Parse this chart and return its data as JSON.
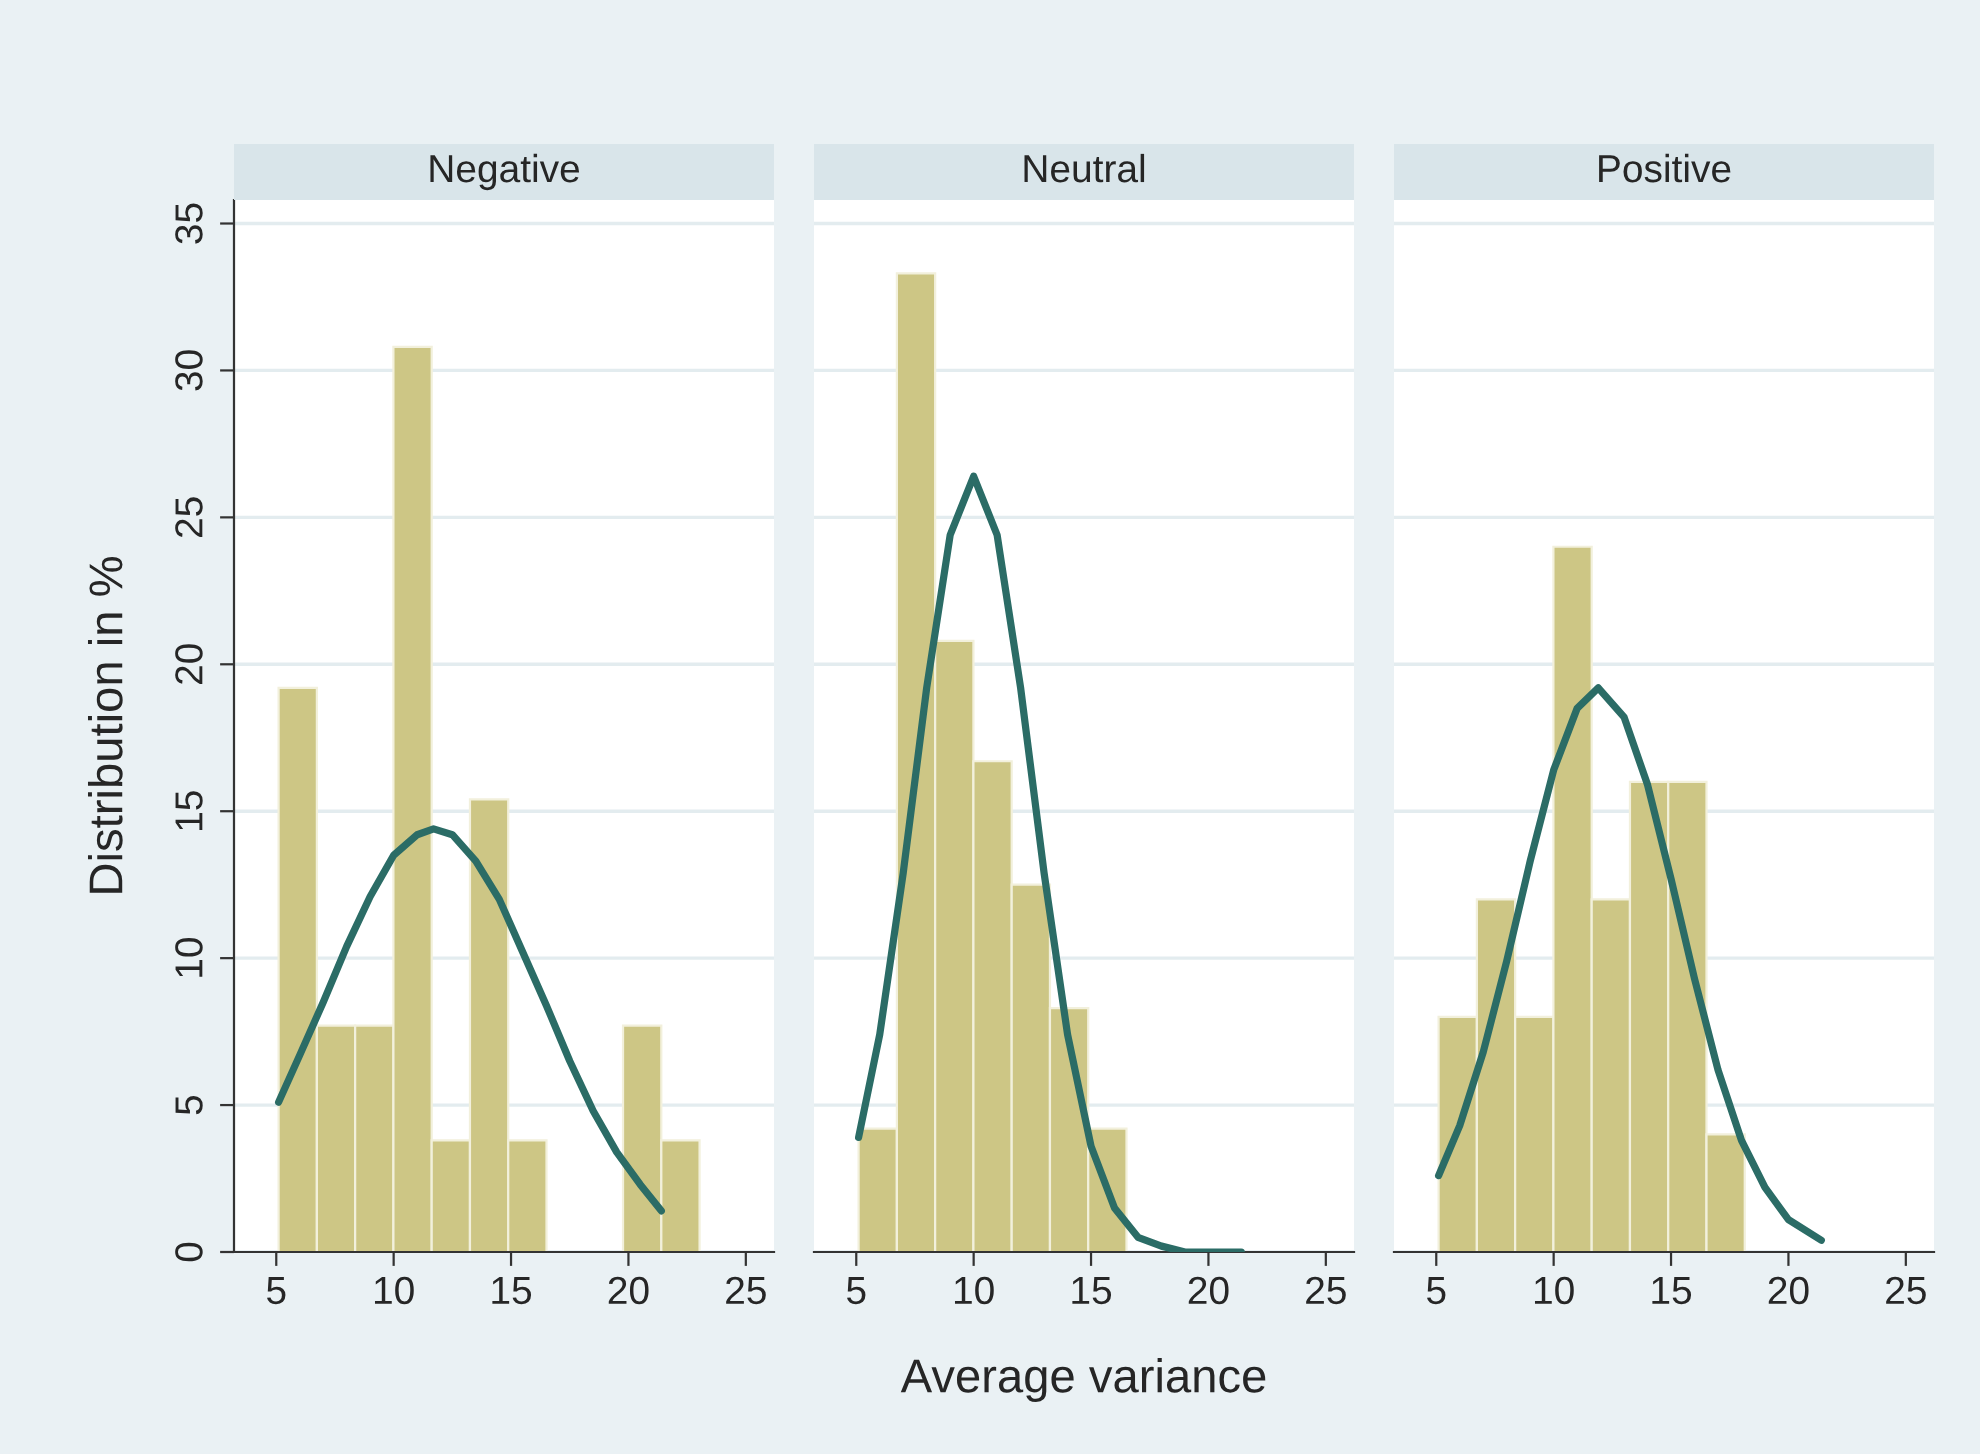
{
  "chart_data": [
    {
      "type": "histogram",
      "title": "Negative",
      "ylabel": "Distribution in %",
      "bins": [
        5.1,
        6.73,
        8.36,
        9.99,
        11.62,
        13.25,
        14.88,
        16.51,
        18.14,
        19.77,
        21.4,
        23.03
      ],
      "series": [
        {
          "color": "#cdc685",
          "values": [
            19.2,
            7.7,
            7.7,
            30.8,
            3.8,
            15.4,
            3.8,
            0,
            0,
            7.7,
            3.8
          ]
        },
        {
          "type": "line",
          "color": "#2b6c66",
          "x": [
            5.1,
            6,
            7,
            8,
            9,
            10,
            11,
            11.7,
            12.5,
            13.5,
            14.5,
            15.5,
            16.5,
            17.5,
            18.5,
            19.5,
            20.5,
            21.4
          ],
          "values": [
            5.1,
            6.7,
            8.5,
            10.4,
            12.1,
            13.5,
            14.2,
            14.4,
            14.2,
            13.3,
            12.0,
            10.2,
            8.4,
            6.5,
            4.8,
            3.4,
            2.3,
            1.4
          ]
        }
      ],
      "xlim": [
        3.2,
        26.2
      ],
      "xticks": [
        5,
        10,
        15,
        20,
        25
      ],
      "ylim": [
        0,
        35.8
      ],
      "yticks": [
        0,
        5,
        10,
        15,
        20,
        25,
        30,
        35
      ],
      "grid": "y"
    },
    {
      "type": "histogram",
      "title": "Neutral",
      "xlabel": "Average variance",
      "bins": [
        5.1,
        6.73,
        8.36,
        9.99,
        11.62,
        13.25,
        14.88,
        16.51
      ],
      "series": [
        {
          "color": "#cdc685",
          "values": [
            4.2,
            33.3,
            20.8,
            16.7,
            12.5,
            8.3,
            4.2
          ]
        },
        {
          "type": "line",
          "color": "#2b6c66",
          "x": [
            5.1,
            6,
            7,
            8,
            9,
            10,
            11,
            12,
            13,
            14,
            15,
            16,
            17,
            18,
            19,
            20,
            21.4
          ],
          "values": [
            3.9,
            7.4,
            12.9,
            19.2,
            24.4,
            26.4,
            24.4,
            19.2,
            12.9,
            7.4,
            3.6,
            1.5,
            0.5,
            0.2,
            0.0,
            0.0,
            0.0
          ]
        }
      ],
      "xlim": [
        3.2,
        26.2
      ],
      "xticks": [
        5,
        10,
        15,
        20,
        25
      ],
      "ylim": [
        0,
        35.8
      ],
      "yticks": [
        0,
        5,
        10,
        15,
        20,
        25,
        30,
        35
      ],
      "grid": "y",
      "tick_labels": "x"
    },
    {
      "type": "histogram",
      "title": "Positive",
      "bins": [
        5.1,
        6.73,
        8.36,
        9.99,
        11.62,
        13.25,
        14.88,
        16.51,
        18.14
      ],
      "series": [
        {
          "color": "#cdc685",
          "values": [
            8,
            12,
            8,
            24,
            12,
            16,
            16,
            4
          ]
        },
        {
          "type": "line",
          "color": "#2b6c66",
          "x": [
            5.1,
            6,
            7,
            8,
            9,
            10,
            11,
            11.9,
            13,
            14,
            15,
            16,
            17,
            18,
            19,
            20,
            21.4
          ],
          "values": [
            2.6,
            4.3,
            6.8,
            9.9,
            13.3,
            16.4,
            18.5,
            19.2,
            18.2,
            15.9,
            12.7,
            9.3,
            6.2,
            3.8,
            2.2,
            1.1,
            0.4
          ]
        }
      ],
      "xlim": [
        3.2,
        26.2
      ],
      "xticks": [
        5,
        10,
        15,
        20,
        25
      ],
      "ylim": [
        0,
        35.8
      ],
      "yticks": [
        0,
        5,
        10,
        15,
        20,
        25,
        30,
        35
      ],
      "grid": "y",
      "tick_labels": "x"
    }
  ]
}
